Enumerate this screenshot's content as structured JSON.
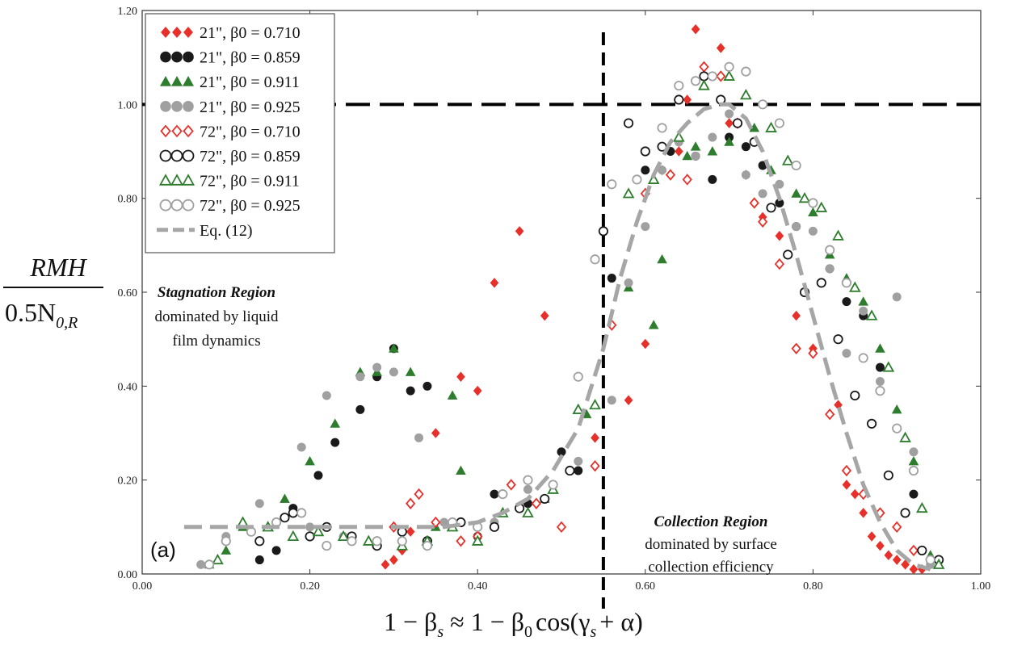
{
  "panel_label": "(a)",
  "ylabel": {
    "numerator": "RMH",
    "denominator": "0.5N",
    "sub": "0,R"
  },
  "xlabel": {
    "lhs": "1 − β",
    "lhs_sub": "s",
    "approx": "≈",
    "rhs_a": "1 − β",
    "rhs_a_sub": "0",
    "rhs_b": "cos(γ",
    "rhs_b_sub": "s",
    "rhs_c": "+ α)"
  },
  "annotations": {
    "stagnation_title": "Stagnation Region",
    "stagnation_line1": "dominated by liquid",
    "stagnation_line2": "film dynamics",
    "collection_title": "Collection Region",
    "collection_line1": "dominated by surface",
    "collection_line2": "collection efficiency"
  },
  "colors": {
    "red": "#e8302a",
    "black": "#1a1a1a",
    "green": "#2e7d2e",
    "gray": "#a0a0a0",
    "curve": "#a6a6a6"
  },
  "chart_data": {
    "type": "scatter",
    "xlim": [
      0,
      1.0
    ],
    "ylim": [
      0,
      1.2
    ],
    "xticks": [
      "0.00",
      "0.20",
      "0.40",
      "0.60",
      "0.80",
      "1.00"
    ],
    "yticks": [
      "0.00",
      "0.20",
      "0.40",
      "0.60",
      "0.80",
      "1.00",
      "1.20"
    ],
    "grid": false,
    "legend_position": "top-left",
    "reference_lines": [
      {
        "orientation": "vertical",
        "x": 0.55,
        "style": "dashed"
      },
      {
        "orientation": "horizontal",
        "y": 1.0,
        "style": "dashed"
      }
    ],
    "series": [
      {
        "name": "21\", β0 = 0.710",
        "marker": "diamond",
        "filled": true,
        "color": "red",
        "x": [
          0.29,
          0.3,
          0.31,
          0.32,
          0.35,
          0.37,
          0.38,
          0.4,
          0.42,
          0.45,
          0.48,
          0.54,
          0.58,
          0.6,
          0.62,
          0.64,
          0.65,
          0.66,
          0.67,
          0.69,
          0.7,
          0.72,
          0.74,
          0.76,
          0.78,
          0.8,
          0.82,
          0.83,
          0.84,
          0.85,
          0.86,
          0.87,
          0.88,
          0.89,
          0.9,
          0.91,
          0.92,
          0.93
        ],
        "y": [
          0.02,
          0.03,
          0.05,
          0.09,
          0.3,
          0.11,
          0.42,
          0.39,
          0.62,
          0.73,
          0.55,
          0.29,
          0.37,
          0.49,
          0.86,
          0.9,
          1.01,
          1.16,
          1.08,
          1.12,
          0.96,
          0.85,
          0.76,
          0.72,
          0.55,
          0.48,
          0.34,
          0.36,
          0.19,
          0.17,
          0.13,
          0.08,
          0.06,
          0.04,
          0.03,
          0.02,
          0.01,
          0.01
        ]
      },
      {
        "name": "21\", β0 = 0.859",
        "marker": "circle",
        "filled": true,
        "color": "black",
        "x": [
          0.14,
          0.16,
          0.18,
          0.21,
          0.23,
          0.26,
          0.28,
          0.3,
          0.32,
          0.34,
          0.4,
          0.42,
          0.46,
          0.5,
          0.52,
          0.56,
          0.6,
          0.63,
          0.66,
          0.68,
          0.7,
          0.72,
          0.74,
          0.76,
          0.78,
          0.8,
          0.82,
          0.84,
          0.86,
          0.88,
          0.9,
          0.92,
          0.94
        ],
        "y": [
          0.03,
          0.05,
          0.14,
          0.21,
          0.28,
          0.35,
          0.42,
          0.48,
          0.39,
          0.4,
          0.08,
          0.17,
          0.15,
          0.26,
          0.22,
          0.63,
          0.86,
          0.9,
          0.89,
          0.84,
          0.93,
          0.91,
          0.87,
          0.79,
          0.74,
          0.79,
          0.65,
          0.58,
          0.55,
          0.44,
          0.31,
          0.17,
          0.03
        ]
      },
      {
        "name": "21\", β0 = 0.911",
        "marker": "triangle",
        "filled": true,
        "color": "green",
        "x": [
          0.08,
          0.1,
          0.12,
          0.15,
          0.17,
          0.2,
          0.23,
          0.26,
          0.28,
          0.3,
          0.32,
          0.35,
          0.37,
          0.38,
          0.48,
          0.53,
          0.58,
          0.61,
          0.62,
          0.65,
          0.66,
          0.68,
          0.7,
          0.73,
          0.75,
          0.78,
          0.8,
          0.82,
          0.84,
          0.86,
          0.88,
          0.9,
          0.92,
          0.94
        ],
        "y": [
          0.02,
          0.05,
          0.1,
          0.1,
          0.16,
          0.24,
          0.32,
          0.43,
          0.43,
          0.48,
          0.43,
          0.1,
          0.38,
          0.22,
          0.16,
          0.34,
          0.61,
          0.53,
          0.67,
          0.89,
          0.91,
          0.9,
          0.92,
          0.95,
          0.86,
          0.81,
          0.77,
          0.68,
          0.63,
          0.58,
          0.48,
          0.35,
          0.24,
          0.04
        ]
      },
      {
        "name": "21\", β0 = 0.925",
        "marker": "circle",
        "filled": true,
        "color": "gray",
        "x": [
          0.07,
          0.1,
          0.14,
          0.16,
          0.19,
          0.2,
          0.22,
          0.24,
          0.26,
          0.28,
          0.3,
          0.33,
          0.36,
          0.42,
          0.46,
          0.52,
          0.56,
          0.58,
          0.6,
          0.62,
          0.64,
          0.66,
          0.68,
          0.7,
          0.72,
          0.74,
          0.76,
          0.78,
          0.8,
          0.82,
          0.84,
          0.86,
          0.88,
          0.9,
          0.92,
          0.94
        ],
        "y": [
          0.02,
          0.08,
          0.15,
          0.11,
          0.27,
          0.1,
          0.38,
          0.08,
          0.42,
          0.44,
          0.43,
          0.29,
          0.11,
          0.11,
          0.18,
          0.24,
          0.37,
          0.62,
          0.74,
          0.86,
          0.92,
          0.89,
          0.93,
          0.98,
          0.85,
          0.81,
          0.83,
          0.74,
          0.73,
          0.65,
          0.47,
          0.56,
          0.41,
          0.59,
          0.26,
          0.02
        ]
      },
      {
        "name": "72\", β0 = 0.710",
        "marker": "diamond",
        "filled": false,
        "color": "red",
        "x": [
          0.3,
          0.32,
          0.33,
          0.35,
          0.38,
          0.4,
          0.44,
          0.47,
          0.5,
          0.54,
          0.56,
          0.6,
          0.63,
          0.65,
          0.67,
          0.69,
          0.71,
          0.73,
          0.74,
          0.76,
          0.78,
          0.8,
          0.82,
          0.84,
          0.86,
          0.88,
          0.9,
          0.92
        ],
        "y": [
          0.1,
          0.15,
          0.17,
          0.11,
          0.07,
          0.08,
          0.19,
          0.15,
          0.1,
          0.23,
          0.53,
          0.81,
          0.85,
          0.84,
          1.08,
          1.06,
          0.96,
          0.79,
          0.75,
          0.66,
          0.48,
          0.47,
          0.34,
          0.22,
          0.17,
          0.13,
          0.1,
          0.05
        ]
      },
      {
        "name": "72\", β0 = 0.859",
        "marker": "circle",
        "filled": false,
        "color": "black",
        "x": [
          0.14,
          0.17,
          0.18,
          0.2,
          0.22,
          0.25,
          0.28,
          0.31,
          0.34,
          0.38,
          0.42,
          0.45,
          0.48,
          0.51,
          0.55,
          0.58,
          0.6,
          0.62,
          0.64,
          0.67,
          0.69,
          0.71,
          0.73,
          0.75,
          0.77,
          0.79,
          0.81,
          0.83,
          0.85,
          0.87,
          0.89,
          0.91,
          0.93,
          0.95
        ],
        "y": [
          0.07,
          0.12,
          0.13,
          0.08,
          0.1,
          0.08,
          0.06,
          0.09,
          0.07,
          0.11,
          0.1,
          0.14,
          0.16,
          0.22,
          0.73,
          0.96,
          0.9,
          0.91,
          1.01,
          1.06,
          1.01,
          0.96,
          0.92,
          0.78,
          0.68,
          0.6,
          0.62,
          0.5,
          0.38,
          0.32,
          0.21,
          0.13,
          0.05,
          0.03
        ]
      },
      {
        "name": "72\", β0 = 0.911",
        "marker": "triangle",
        "filled": false,
        "color": "green",
        "x": [
          0.09,
          0.12,
          0.15,
          0.18,
          0.21,
          0.24,
          0.27,
          0.31,
          0.34,
          0.37,
          0.4,
          0.43,
          0.46,
          0.49,
          0.52,
          0.54,
          0.58,
          0.61,
          0.64,
          0.67,
          0.7,
          0.72,
          0.75,
          0.77,
          0.79,
          0.81,
          0.83,
          0.85,
          0.87,
          0.89,
          0.91,
          0.93,
          0.95
        ],
        "y": [
          0.03,
          0.11,
          0.1,
          0.08,
          0.09,
          0.08,
          0.07,
          0.06,
          0.07,
          0.1,
          0.07,
          0.13,
          0.13,
          0.18,
          0.35,
          0.36,
          0.81,
          0.84,
          0.93,
          1.04,
          1.06,
          1.02,
          0.95,
          0.88,
          0.8,
          0.78,
          0.72,
          0.61,
          0.55,
          0.44,
          0.29,
          0.14,
          0.02
        ]
      },
      {
        "name": "72\", β0 = 0.925",
        "marker": "circle",
        "filled": false,
        "color": "gray",
        "x": [
          0.08,
          0.1,
          0.13,
          0.16,
          0.19,
          0.22,
          0.25,
          0.28,
          0.31,
          0.34,
          0.37,
          0.4,
          0.43,
          0.46,
          0.49,
          0.52,
          0.54,
          0.56,
          0.59,
          0.62,
          0.64,
          0.66,
          0.68,
          0.7,
          0.72,
          0.74,
          0.76,
          0.78,
          0.8,
          0.82,
          0.84,
          0.86,
          0.88,
          0.9,
          0.92,
          0.94
        ],
        "y": [
          0.02,
          0.07,
          0.09,
          0.11,
          0.13,
          0.06,
          0.07,
          0.07,
          0.07,
          0.06,
          0.11,
          0.1,
          0.17,
          0.2,
          0.19,
          0.42,
          0.67,
          0.83,
          0.84,
          0.95,
          1.04,
          1.05,
          1.06,
          1.08,
          1.07,
          1.0,
          0.96,
          0.87,
          0.79,
          0.69,
          0.62,
          0.46,
          0.39,
          0.31,
          0.22,
          0.03
        ]
      }
    ],
    "curve": {
      "name": "Eq. (12)",
      "style": "dashed",
      "x": [
        0.05,
        0.12,
        0.2,
        0.3,
        0.36,
        0.4,
        0.43,
        0.46,
        0.49,
        0.52,
        0.55,
        0.57,
        0.59,
        0.61,
        0.63,
        0.65,
        0.67,
        0.69,
        0.7,
        0.72,
        0.74,
        0.76,
        0.78,
        0.8,
        0.82,
        0.84,
        0.86,
        0.88,
        0.9,
        0.92,
        0.94
      ],
      "y": [
        0.1,
        0.1,
        0.1,
        0.1,
        0.1,
        0.11,
        0.13,
        0.16,
        0.22,
        0.31,
        0.48,
        0.63,
        0.75,
        0.85,
        0.92,
        0.96,
        0.99,
        1.0,
        1.0,
        0.97,
        0.9,
        0.8,
        0.68,
        0.55,
        0.42,
        0.3,
        0.19,
        0.11,
        0.05,
        0.02,
        0.01
      ]
    }
  }
}
